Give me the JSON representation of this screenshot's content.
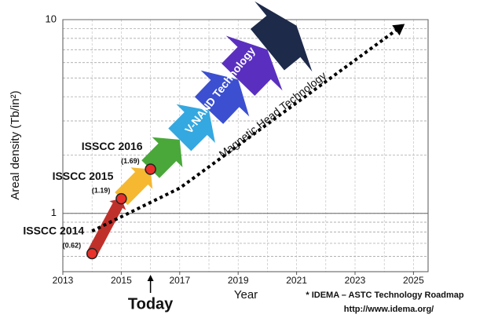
{
  "chart_data": {
    "type": "roadmap",
    "y_label": "Areal density (Tb/in²)",
    "x_label": "Year",
    "xlim": [
      2013,
      2025.5
    ],
    "xticks": [
      2013,
      2015,
      2017,
      2019,
      2021,
      2023,
      2025
    ],
    "ylim": [
      0.5,
      10
    ],
    "yticks": [
      1,
      10
    ],
    "log_y": true,
    "grid": true,
    "points": {
      "labels": [
        "ISSCC 2014",
        "ISSCC 2015",
        "ISSCC 2016"
      ],
      "x": [
        2014,
        2015,
        2016
      ],
      "values": [
        0.62,
        1.19,
        1.69
      ],
      "value_labels": [
        "(0.62)",
        "(1.19)",
        "(1.69)"
      ],
      "color": "#e8312a"
    },
    "trend": {
      "name": "V-NAND Technology",
      "x": [
        2014,
        2015,
        2016,
        2017,
        2018,
        2019,
        2020,
        2021
      ],
      "values": [
        0.62,
        1.19,
        1.69,
        2.4,
        3.4,
        4.9,
        7,
        9.3
      ],
      "colors": [
        "#c0302a",
        "#f5b830",
        "#4aa83a",
        "#34a8e0",
        "#3b4fd0",
        "#5a2fc0",
        "#1e2a4a"
      ]
    },
    "magnetic": {
      "name": "Magnetic Head Technology",
      "x": [
        2014,
        2017,
        2024.7
      ],
      "values": [
        0.81,
        1.35,
        9.5
      ],
      "color": "#000000"
    },
    "marker": {
      "x": 2016,
      "label": "Today"
    },
    "footnote": [
      "* IDEMA – ASTC Technology Roadmap",
      "http://www.idema.org/"
    ]
  }
}
